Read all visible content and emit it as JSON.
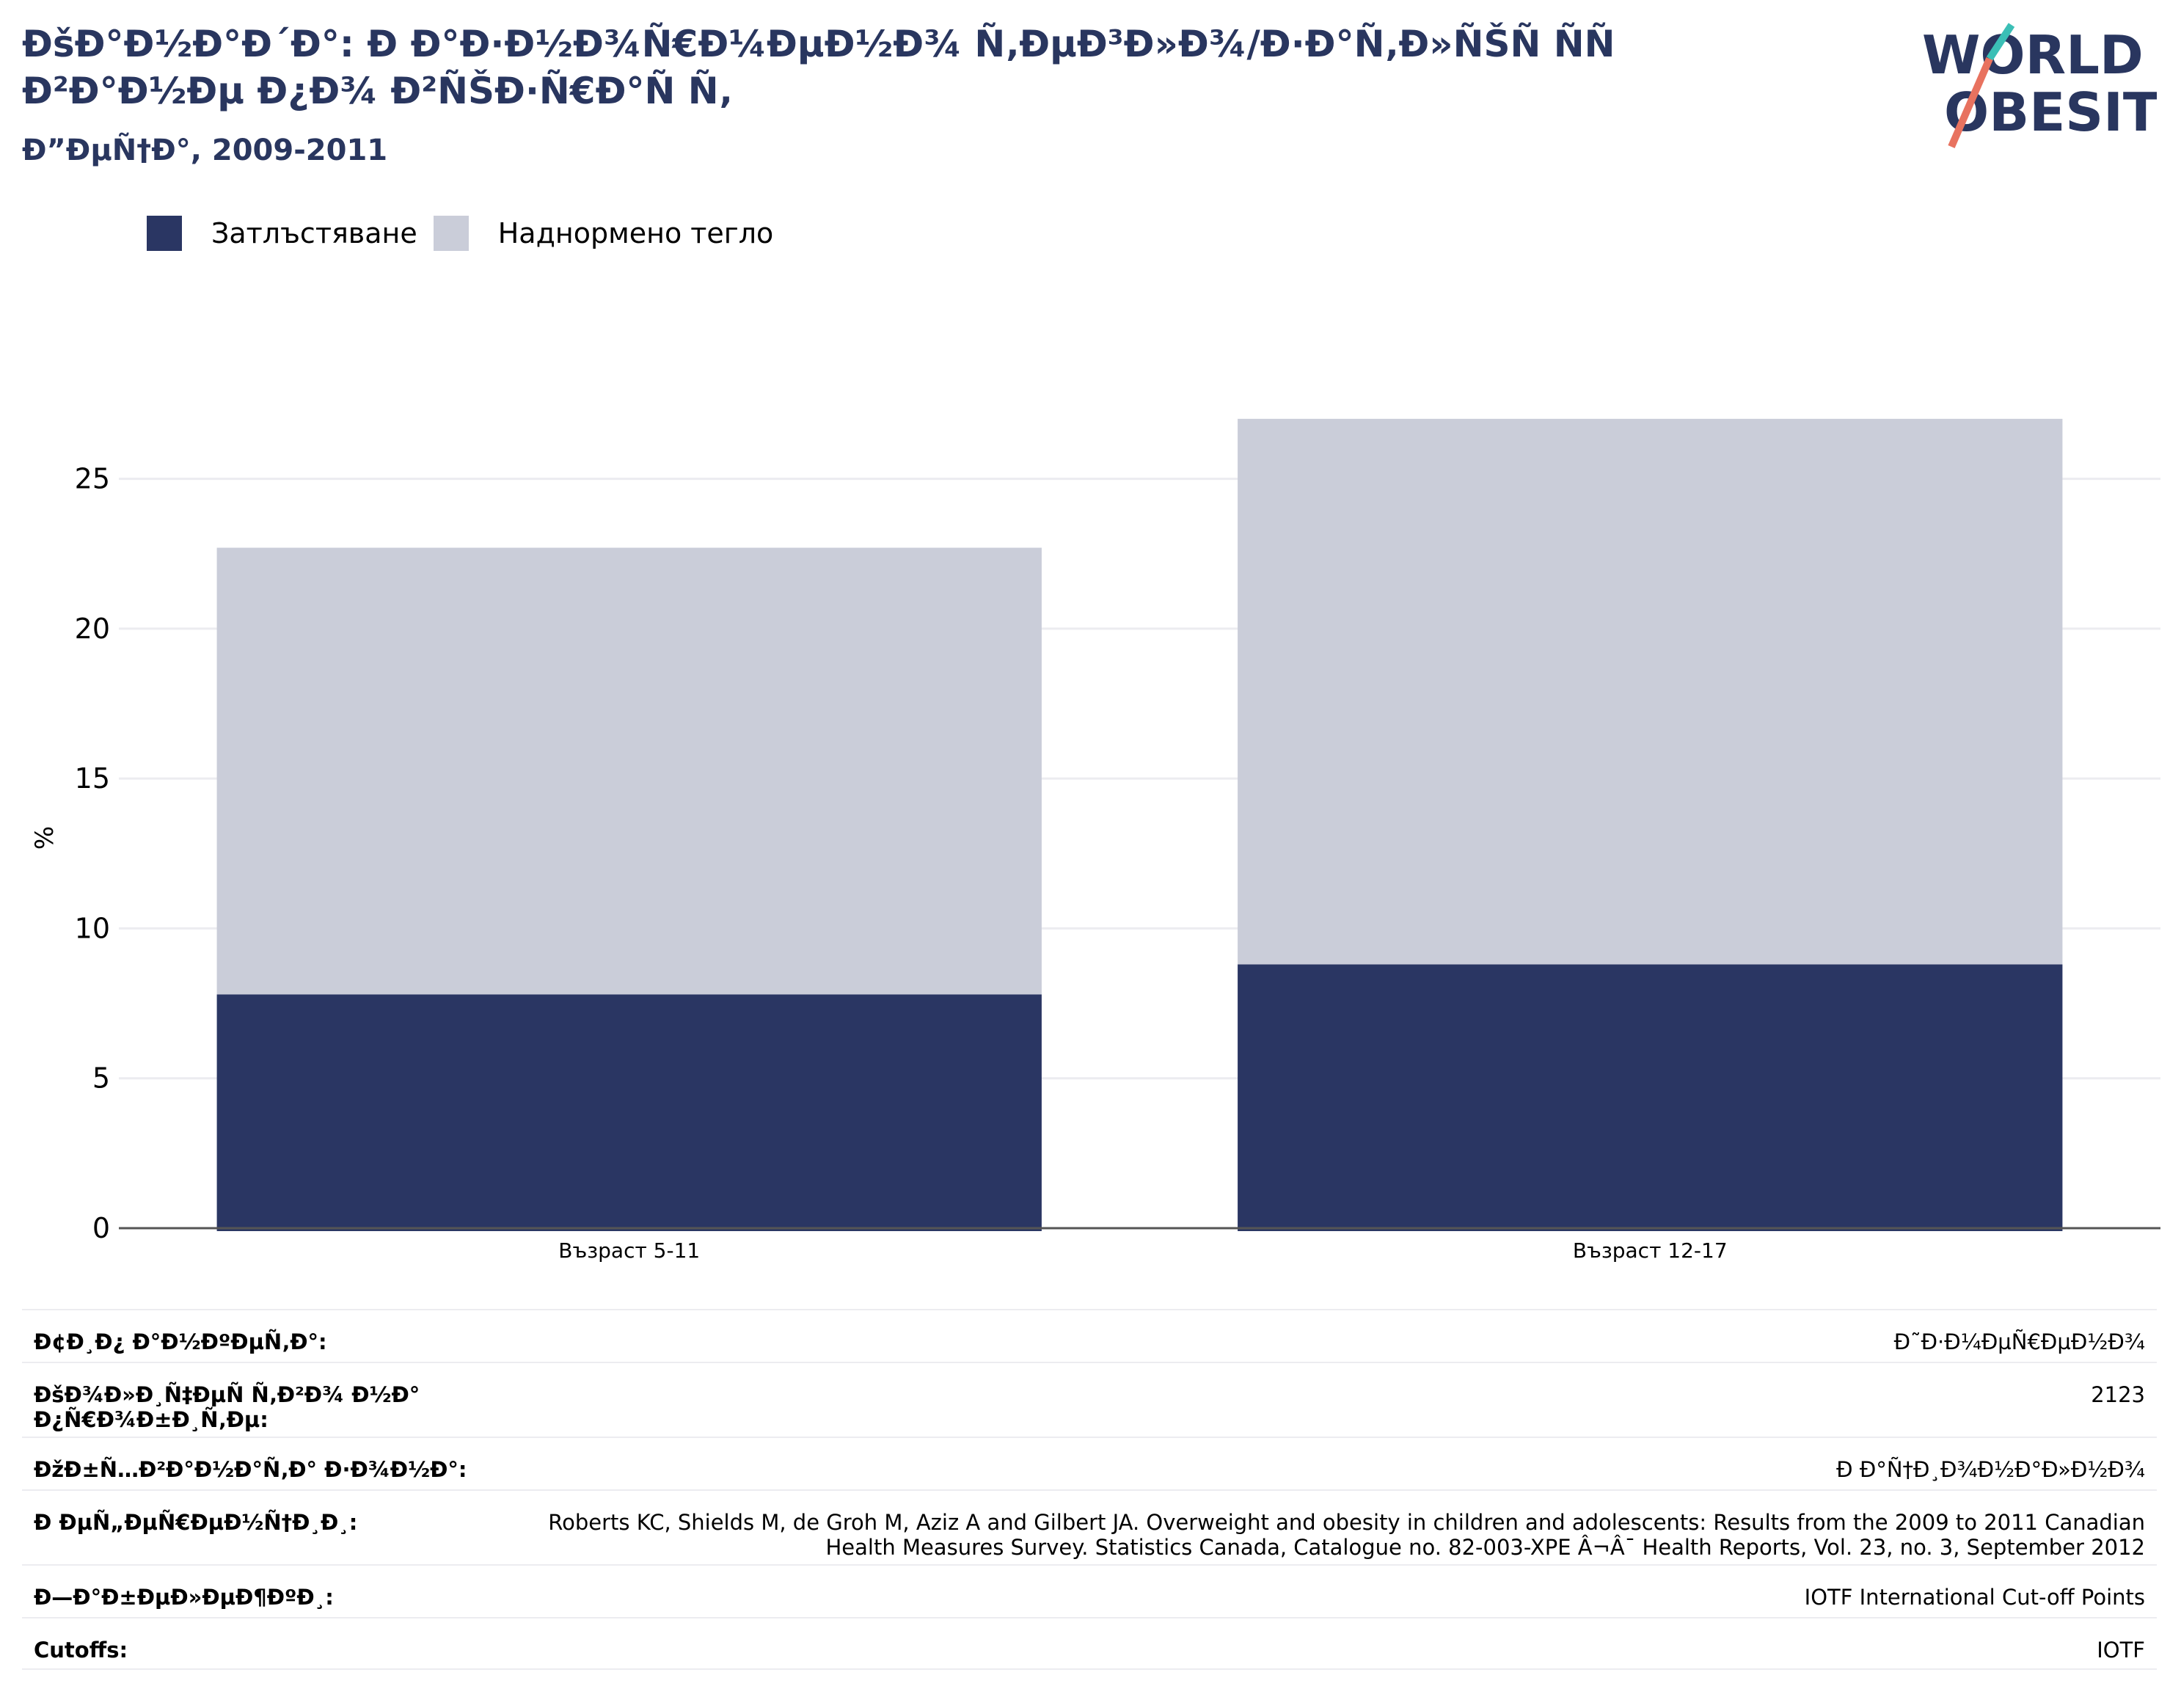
{
  "header": {
    "title": "ÐšÐ°Ð½Ð°Ð´Ð°: Ð Ð°Ð·Ð½Ð¾Ñ€Ð¼ÐµÐ½Ð¾ Ñ‚ÐµÐ³Ð»Ð¾/Ð·Ð°Ñ‚Ð»ÑŠÑ ÑÑ Ð²Ð°Ð½Ðµ Ð¿Ð¾ Ð²ÑŠÐ·Ñ€Ð°Ñ Ñ‚",
    "subtitle": "Ð”ÐµÑ†Ð°, 2009-2011"
  },
  "logo": {
    "line1": "WORLD",
    "line2": "OBESITY",
    "colors": {
      "text": "#29365f",
      "teal": "#3bbfb6",
      "coral": "#e8725f"
    }
  },
  "legend": [
    {
      "label": "Затлъстяване",
      "color": "#2a3663"
    },
    {
      "label": "Наднормено тегло",
      "color": "#cacdd9"
    }
  ],
  "chart_data": {
    "type": "bar",
    "stacked": true,
    "categories": [
      "Възраст 5-11",
      "Възраст 12-17"
    ],
    "series": [
      {
        "name": "Затлъстяване",
        "values": [
          7.8,
          8.8
        ],
        "color": "#2a3663"
      },
      {
        "name": "Наднормено тегло",
        "values": [
          14.9,
          18.2
        ],
        "color": "#cacdd9"
      }
    ],
    "ylabel": "%",
    "ylim": [
      0,
      28
    ],
    "yticks": [
      0,
      5,
      10,
      15,
      20,
      25
    ],
    "grid": true,
    "legend": "top-left"
  },
  "info": [
    {
      "label": "Ð¢Ð¸Ð¿ Ð°Ð½ÐºÐµÑ‚Ð°:",
      "value": "Ð˜Ð·Ð¼ÐµÑ€ÐµÐ½Ð¾"
    },
    {
      "label": "ÐšÐ¾Ð»Ð¸Ñ‡ÐµÑ Ñ‚Ð²Ð¾ Ð½Ð° Ð¿Ñ€Ð¾Ð±Ð¸Ñ‚Ðµ:",
      "value": "2123"
    },
    {
      "label": "ÐžÐ±Ñ…Ð²Ð°Ð½Ð°Ñ‚Ð° Ð·Ð¾Ð½Ð°:",
      "value": "Ð Ð°Ñ†Ð¸Ð¾Ð½Ð°Ð»Ð½Ð¾"
    },
    {
      "label": "Ð ÐµÑ„ÐµÑ€ÐµÐ½Ñ†Ð¸Ð¸:",
      "value": "Roberts KC, Shields M, de Groh M, Aziz A and Gilbert JA. Overweight and obesity in children and adolescents: Results from the 2009 to 2011 Canadian Health Measures Survey. Statistics Canada, Catalogue no. 82-003-XPE Â¬Â¯ Health Reports, Vol. 23, no. 3, September 2012"
    },
    {
      "label": "Ð—Ð°Ð±ÐµÐ»ÐµÐ¶ÐºÐ¸:",
      "value": "IOTF International Cut-off Points"
    },
    {
      "label": "Cutoffs:",
      "value": "IOTF"
    }
  ]
}
